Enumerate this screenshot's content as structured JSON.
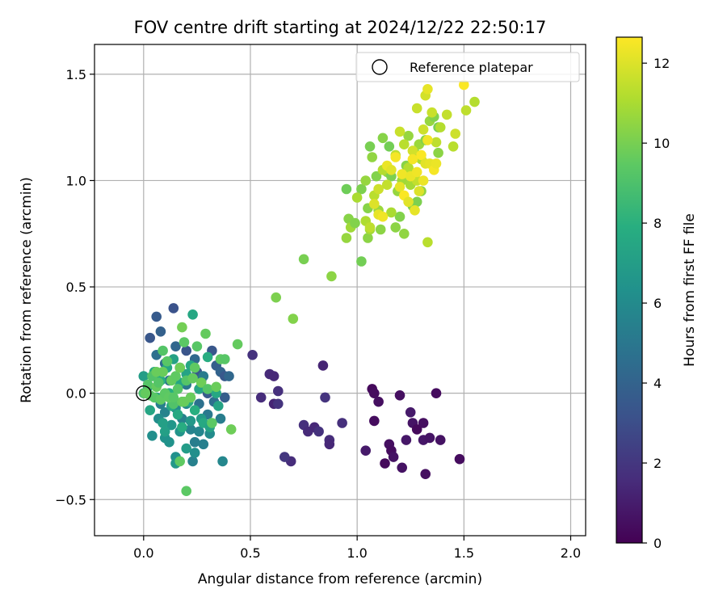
{
  "chart_data": {
    "type": "scatter",
    "title": "FOV centre drift starting at 2024/12/22 22:50:17",
    "xlabel": "Angular distance from reference (arcmin)",
    "ylabel": "Rotation from reference (arcmin)",
    "xlim": [
      -0.23,
      2.07
    ],
    "ylim": [
      -0.67,
      1.64
    ],
    "xticks": [
      0.0,
      0.5,
      1.0,
      1.5,
      2.0
    ],
    "xtick_labels": [
      "0.0",
      "0.5",
      "1.0",
      "1.5",
      "2.0"
    ],
    "yticks": [
      -0.5,
      0.0,
      0.5,
      1.0,
      1.5
    ],
    "ytick_labels": [
      "−0.5",
      "0.0",
      "0.5",
      "1.0",
      "1.5"
    ],
    "grid": true,
    "legend": {
      "placement": "top-right",
      "entries": [
        "Reference platepar"
      ]
    },
    "reference_point": {
      "x": 0.0,
      "y": 0.0
    },
    "colorbar": {
      "label": "Hours from first FF file",
      "range": [
        0,
        12.65
      ],
      "ticks": [
        0,
        2,
        4,
        6,
        8,
        10,
        12
      ],
      "tick_labels": [
        "0",
        "2",
        "4",
        "6",
        "8",
        "10",
        "12"
      ],
      "colormap": "viridis"
    },
    "points": [
      [
        1.07,
        0.02,
        0.3
      ],
      [
        1.08,
        0.0,
        0.4
      ],
      [
        1.1,
        -0.04,
        0.5
      ],
      [
        1.08,
        -0.13,
        0.4
      ],
      [
        1.13,
        -0.33,
        0.3
      ],
      [
        1.15,
        -0.24,
        0.5
      ],
      [
        1.16,
        -0.27,
        0.4
      ],
      [
        1.17,
        -0.3,
        0.6
      ],
      [
        1.2,
        -0.01,
        0.5
      ],
      [
        1.21,
        -0.35,
        0.6
      ],
      [
        1.23,
        -0.22,
        0.8
      ],
      [
        1.25,
        -0.09,
        0.9
      ],
      [
        1.26,
        -0.14,
        0.7
      ],
      [
        1.28,
        -0.17,
        0.3
      ],
      [
        1.31,
        -0.14,
        0.5
      ],
      [
        1.31,
        -0.22,
        0.8
      ],
      [
        1.32,
        -0.38,
        0.5
      ],
      [
        1.34,
        -0.21,
        0.7
      ],
      [
        1.37,
        0.0,
        0.4
      ],
      [
        1.39,
        -0.22,
        0.6
      ],
      [
        1.48,
        -0.31,
        0.4
      ],
      [
        1.04,
        -0.27,
        0.9
      ],
      [
        0.51,
        0.18,
        1.8
      ],
      [
        0.55,
        -0.02,
        1.6
      ],
      [
        0.59,
        0.09,
        1.5
      ],
      [
        0.61,
        0.08,
        1.4
      ],
      [
        0.61,
        -0.05,
        1.3
      ],
      [
        0.63,
        0.01,
        1.7
      ],
      [
        0.63,
        -0.05,
        1.9
      ],
      [
        0.69,
        -0.32,
        1.6
      ],
      [
        0.75,
        -0.15,
        1.7
      ],
      [
        0.77,
        -0.18,
        1.5
      ],
      [
        0.8,
        -0.16,
        1.4
      ],
      [
        0.82,
        -0.18,
        1.8
      ],
      [
        0.84,
        0.13,
        1.3
      ],
      [
        0.85,
        -0.02,
        1.9
      ],
      [
        0.87,
        -0.22,
        1.6
      ],
      [
        0.87,
        -0.24,
        1.4
      ],
      [
        0.93,
        -0.14,
        1.7
      ],
      [
        0.66,
        -0.3,
        2.0
      ],
      [
        0.03,
        0.26,
        3.4
      ],
      [
        0.06,
        0.36,
        3.6
      ],
      [
        0.14,
        0.4,
        3.2
      ],
      [
        0.08,
        0.29,
        3.9
      ],
      [
        0.2,
        0.2,
        3.3
      ],
      [
        0.23,
        0.37,
        7.5
      ],
      [
        0.25,
        0.1,
        3.5
      ],
      [
        0.27,
        0.06,
        4.1
      ],
      [
        0.3,
        0.0,
        3.6
      ],
      [
        0.32,
        0.2,
        3.4
      ],
      [
        0.34,
        0.13,
        3.8
      ],
      [
        0.36,
        0.1,
        4.0
      ],
      [
        0.38,
        0.08,
        3.5
      ],
      [
        0.38,
        -0.02,
        3.7
      ],
      [
        0.4,
        0.08,
        4.2
      ],
      [
        0.06,
        0.18,
        4.6
      ],
      [
        0.1,
        0.14,
        4.4
      ],
      [
        0.12,
        0.06,
        4.8
      ],
      [
        0.15,
        0.22,
        4.2
      ],
      [
        0.17,
        0.12,
        4.9
      ],
      [
        0.2,
        0.04,
        5.0
      ],
      [
        0.24,
        0.16,
        4.3
      ],
      [
        0.26,
        -0.05,
        4.7
      ],
      [
        0.28,
        0.08,
        5.2
      ],
      [
        0.3,
        -0.1,
        5.1
      ],
      [
        0.33,
        -0.04,
        4.6
      ],
      [
        0.36,
        -0.12,
        5.3
      ],
      [
        0.08,
        -0.05,
        5.4
      ],
      [
        0.1,
        -0.09,
        5.6
      ],
      [
        0.13,
        -0.02,
        5.2
      ],
      [
        0.15,
        -0.07,
        5.9
      ],
      [
        0.18,
        -0.12,
        5.5
      ],
      [
        0.2,
        -0.05,
        5.8
      ],
      [
        0.22,
        -0.17,
        5.6
      ],
      [
        0.24,
        -0.23,
        5.3
      ],
      [
        0.26,
        -0.18,
        5.7
      ],
      [
        0.28,
        -0.24,
        5.4
      ],
      [
        0.23,
        -0.32,
        5.5
      ],
      [
        0.37,
        -0.32,
        5.8
      ],
      [
        0.31,
        -0.19,
        6.0
      ],
      [
        0.04,
        -0.2,
        6.2
      ],
      [
        0.07,
        -0.12,
        6.1
      ],
      [
        0.1,
        -0.21,
        6.4
      ],
      [
        0.13,
        -0.15,
        6.6
      ],
      [
        0.15,
        -0.3,
        6.3
      ],
      [
        0.17,
        -0.18,
        6.5
      ],
      [
        0.2,
        -0.26,
        6.9
      ],
      [
        0.22,
        -0.13,
        6.7
      ],
      [
        0.24,
        -0.28,
        6.2
      ],
      [
        0.27,
        -0.12,
        6.8
      ],
      [
        0.15,
        -0.33,
        6.7
      ],
      [
        0.1,
        -0.18,
        7.1
      ],
      [
        0.12,
        -0.23,
        6.4
      ],
      [
        0.0,
        0.08,
        7.0
      ],
      [
        0.02,
        0.03,
        7.2
      ],
      [
        0.03,
        -0.08,
        7.4
      ],
      [
        0.05,
        0.1,
        7.6
      ],
      [
        0.06,
        -0.02,
        7.3
      ],
      [
        0.08,
        0.06,
        7.8
      ],
      [
        0.09,
        -0.14,
        7.1
      ],
      [
        0.11,
        0.12,
        7.5
      ],
      [
        0.12,
        0.0,
        7.9
      ],
      [
        0.13,
        -0.06,
        7.7
      ],
      [
        0.14,
        0.16,
        7.2
      ],
      [
        0.16,
        -0.1,
        7.6
      ],
      [
        0.17,
        0.05,
        7.4
      ],
      [
        0.18,
        -0.16,
        7.8
      ],
      [
        0.2,
        0.09,
        7.3
      ],
      [
        0.21,
        -0.04,
        7.7
      ],
      [
        0.22,
        0.13,
        7.5
      ],
      [
        0.24,
        -0.08,
        7.9
      ],
      [
        0.26,
        0.02,
        7.4
      ],
      [
        0.28,
        -0.14,
        7.6
      ],
      [
        0.3,
        0.17,
        7.8
      ],
      [
        0.31,
        -0.16,
        7.2
      ],
      [
        0.34,
        0.0,
        7.5
      ],
      [
        0.35,
        -0.06,
        7.3
      ],
      [
        0.0,
        0.0,
        9.0
      ],
      [
        0.02,
        0.04,
        9.2
      ],
      [
        0.03,
        -0.01,
        9.4
      ],
      [
        0.04,
        0.08,
        9.1
      ],
      [
        0.05,
        -0.02,
        9.3
      ],
      [
        0.06,
        0.03,
        9.6
      ],
      [
        0.07,
        0.05,
        9.2
      ],
      [
        0.08,
        -0.03,
        9.5
      ],
      [
        0.09,
        0.1,
        9.7
      ],
      [
        0.1,
        0.0,
        9.4
      ],
      [
        0.11,
        0.15,
        9.3
      ],
      [
        0.12,
        -0.02,
        9.8
      ],
      [
        0.13,
        0.06,
        9.6
      ],
      [
        0.14,
        -0.05,
        9.1
      ],
      [
        0.15,
        0.08,
        9.5
      ],
      [
        0.16,
        0.02,
        9.3
      ],
      [
        0.17,
        0.12,
        9.8
      ],
      [
        0.18,
        -0.04,
        9.6
      ],
      [
        0.19,
        0.24,
        9.4
      ],
      [
        0.2,
        0.06,
        9.2
      ],
      [
        0.22,
        -0.02,
        9.7
      ],
      [
        0.24,
        0.12,
        9.5
      ],
      [
        0.25,
        0.22,
        9.3
      ],
      [
        0.27,
        0.05,
        9.8
      ],
      [
        0.29,
        0.28,
        9.6
      ],
      [
        0.3,
        0.02,
        9.2
      ],
      [
        0.32,
        -0.14,
        9.4
      ],
      [
        0.34,
        0.03,
        9.7
      ],
      [
        0.36,
        0.16,
        9.5
      ],
      [
        0.38,
        0.16,
        9.3
      ],
      [
        0.41,
        -0.17,
        9.8
      ],
      [
        0.44,
        0.23,
        9.6
      ],
      [
        0.06,
        0.1,
        9.7
      ],
      [
        0.09,
        0.2,
        9.2
      ],
      [
        0.12,
        -0.02,
        9.5
      ],
      [
        0.18,
        0.31,
        9.9
      ],
      [
        0.2,
        -0.46,
        9.4
      ],
      [
        0.17,
        -0.32,
        9.5
      ],
      [
        0.01,
        0.0,
        9.6
      ],
      [
        0.14,
        -0.02,
        9.3
      ],
      [
        0.23,
        0.07,
        9.6
      ],
      [
        0.19,
        -0.04,
        9.7
      ],
      [
        0.62,
        0.45,
        10.1
      ],
      [
        0.7,
        0.35,
        10.2
      ],
      [
        0.75,
        0.63,
        10.0
      ],
      [
        0.88,
        0.55,
        10.4
      ],
      [
        0.95,
        0.73,
        10.6
      ],
      [
        0.95,
        0.96,
        9.8
      ],
      [
        0.96,
        0.82,
        10.3
      ],
      [
        0.97,
        0.78,
        10.8
      ],
      [
        0.99,
        0.8,
        10.2
      ],
      [
        1.02,
        0.62,
        9.9
      ],
      [
        1.02,
        0.96,
        10.1
      ],
      [
        1.04,
        1.0,
        10.6
      ],
      [
        1.05,
        0.73,
        10.4
      ],
      [
        1.05,
        0.87,
        10.3
      ],
      [
        1.06,
        0.77,
        10.9
      ],
      [
        1.06,
        1.16,
        10.0
      ],
      [
        1.07,
        1.11,
        10.5
      ],
      [
        1.09,
        1.02,
        10.2
      ],
      [
        1.1,
        0.86,
        10.7
      ],
      [
        1.11,
        0.77,
        10.4
      ],
      [
        1.12,
        1.2,
        10.3
      ],
      [
        1.14,
        1.04,
        10.6
      ],
      [
        1.15,
        1.16,
        9.9
      ],
      [
        1.16,
        1.02,
        10.1
      ],
      [
        1.18,
        0.78,
        10.4
      ],
      [
        1.19,
        0.95,
        10.6
      ],
      [
        1.2,
        0.83,
        10.2
      ],
      [
        1.21,
        1.0,
        10.8
      ],
      [
        1.22,
        0.75,
        10.5
      ],
      [
        1.23,
        1.07,
        10.3
      ],
      [
        1.24,
        1.21,
        10.6
      ],
      [
        1.25,
        0.98,
        10.9
      ],
      [
        1.26,
        0.88,
        10.2
      ],
      [
        1.27,
        1.13,
        10.4
      ],
      [
        1.28,
        0.9,
        10.1
      ],
      [
        1.29,
        1.17,
        10.7
      ],
      [
        1.3,
        0.95,
        10.5
      ],
      [
        1.32,
        1.19,
        10.3
      ],
      [
        1.34,
        1.28,
        10.6
      ],
      [
        1.36,
        1.3,
        10.2
      ],
      [
        1.38,
        1.13,
        10.4
      ],
      [
        1.38,
        1.25,
        10.0
      ],
      [
        1.0,
        0.92,
        11.0
      ],
      [
        1.04,
        0.81,
        11.1
      ],
      [
        1.06,
        0.78,
        11.4
      ],
      [
        1.08,
        0.93,
        11.3
      ],
      [
        1.1,
        0.96,
        11.7
      ],
      [
        1.12,
        1.05,
        11.2
      ],
      [
        1.14,
        0.98,
        11.5
      ],
      [
        1.16,
        0.85,
        11.0
      ],
      [
        1.18,
        1.12,
        11.4
      ],
      [
        1.2,
        1.23,
        11.6
      ],
      [
        1.22,
        1.17,
        11.3
      ],
      [
        1.24,
        1.06,
        11.2
      ],
      [
        1.26,
        1.14,
        11.8
      ],
      [
        1.28,
        1.0,
        11.5
      ],
      [
        1.3,
        1.1,
        11.1
      ],
      [
        1.31,
        1.24,
        11.7
      ],
      [
        1.33,
        0.71,
        11.3
      ],
      [
        1.35,
        1.32,
        11.6
      ],
      [
        1.37,
        1.18,
        11.4
      ],
      [
        1.39,
        1.25,
        11.2
      ],
      [
        1.42,
        1.31,
        11.5
      ],
      [
        1.45,
        1.16,
        11.3
      ],
      [
        1.46,
        1.22,
        11.7
      ],
      [
        1.51,
        1.33,
        11.4
      ],
      [
        1.55,
        1.37,
        11.2
      ],
      [
        1.28,
        1.34,
        11.6
      ],
      [
        1.32,
        1.4,
        11.8
      ],
      [
        1.08,
        0.89,
        12.0
      ],
      [
        1.1,
        0.84,
        12.2
      ],
      [
        1.12,
        0.83,
        12.4
      ],
      [
        1.14,
        1.07,
        12.3
      ],
      [
        1.16,
        1.05,
        12.1
      ],
      [
        1.18,
        1.11,
        12.5
      ],
      [
        1.2,
        0.97,
        12.2
      ],
      [
        1.21,
        1.03,
        12.4
      ],
      [
        1.22,
        0.93,
        12.6
      ],
      [
        1.24,
        0.9,
        12.1
      ],
      [
        1.25,
        1.02,
        12.3
      ],
      [
        1.26,
        1.1,
        12.5
      ],
      [
        1.27,
        0.86,
        12.2
      ],
      [
        1.28,
        1.04,
        12.4
      ],
      [
        1.29,
        0.95,
        12.0
      ],
      [
        1.3,
        1.12,
        12.6
      ],
      [
        1.31,
        1.0,
        12.3
      ],
      [
        1.32,
        1.08,
        12.1
      ],
      [
        1.33,
        1.19,
        12.4
      ],
      [
        1.34,
        1.08,
        12.2
      ],
      [
        1.36,
        1.05,
        12.5
      ],
      [
        1.37,
        1.08,
        12.3
      ],
      [
        1.33,
        1.43,
        12.2
      ],
      [
        1.5,
        1.45,
        12.6
      ]
    ]
  }
}
